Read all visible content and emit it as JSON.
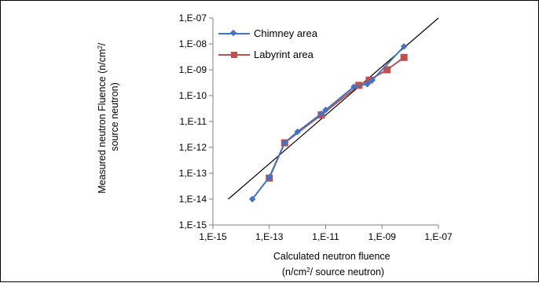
{
  "chart_data": {
    "type": "scatter",
    "x_scale": "log",
    "y_scale": "log",
    "xlim": [
      1e-15,
      1e-07
    ],
    "ylim": [
      1e-15,
      1e-07
    ],
    "x_ticks": [
      {
        "value": 1e-15,
        "label": "1,E-15"
      },
      {
        "value": 1e-13,
        "label": "1,E-13"
      },
      {
        "value": 1e-11,
        "label": "1,E-11"
      },
      {
        "value": 1e-09,
        "label": "1,E-09"
      },
      {
        "value": 1e-07,
        "label": "1,E-07"
      }
    ],
    "y_ticks": [
      {
        "value": 1e-15,
        "label": "1,E-15"
      },
      {
        "value": 1e-14,
        "label": "1,E-14"
      },
      {
        "value": 1e-13,
        "label": "1,E-13"
      },
      {
        "value": 1e-12,
        "label": "1,E-12"
      },
      {
        "value": 1e-11,
        "label": "1,E-11"
      },
      {
        "value": 1e-10,
        "label": "1,E-10"
      },
      {
        "value": 1e-09,
        "label": "1,E-09"
      },
      {
        "value": 1e-08,
        "label": "1,E-08"
      },
      {
        "value": 1e-07,
        "label": "1,E-07"
      }
    ],
    "xlabel": {
      "line1": "Calculated neutron fluence",
      "line2_prefix": "(n/cm",
      "sup": "2",
      "line2_suffix": "/ source neutron)"
    },
    "ylabel": {
      "line1_prefix": "Measured neutron Fluence  (n/cm",
      "sup": "2",
      "line1_suffix": "/",
      "line2": "source neutron)"
    },
    "grid": false,
    "legend_position": "top-left",
    "series": [
      {
        "name": "Chimney area",
        "color": "#4472c4",
        "marker": "diamond",
        "x": [
          2.5e-14,
          1e-13,
          3.5e-13,
          1e-12,
          7e-12,
          1e-11,
          1e-10,
          3e-10,
          4.5e-10,
          6e-09
        ],
        "y": [
          1e-14,
          7e-14,
          1.5e-12,
          4e-12,
          2e-11,
          2.8e-11,
          2.2e-10,
          2.8e-10,
          4e-10,
          8e-09
        ]
      },
      {
        "name": "Labyrint area",
        "color": "#c0504d",
        "marker": "square",
        "x": [
          1e-13,
          3.5e-13,
          7e-12,
          1.5e-10,
          3.5e-10,
          1.5e-09,
          6e-09
        ],
        "y": [
          6.5e-14,
          1.5e-12,
          1.8e-11,
          2.5e-10,
          4e-10,
          1e-09,
          3e-09
        ]
      },
      {
        "name": "",
        "color": "#000000",
        "marker": "none",
        "x": [
          3.5e-15,
          1e-07
        ],
        "y": [
          1e-14,
          1e-07
        ]
      }
    ]
  }
}
